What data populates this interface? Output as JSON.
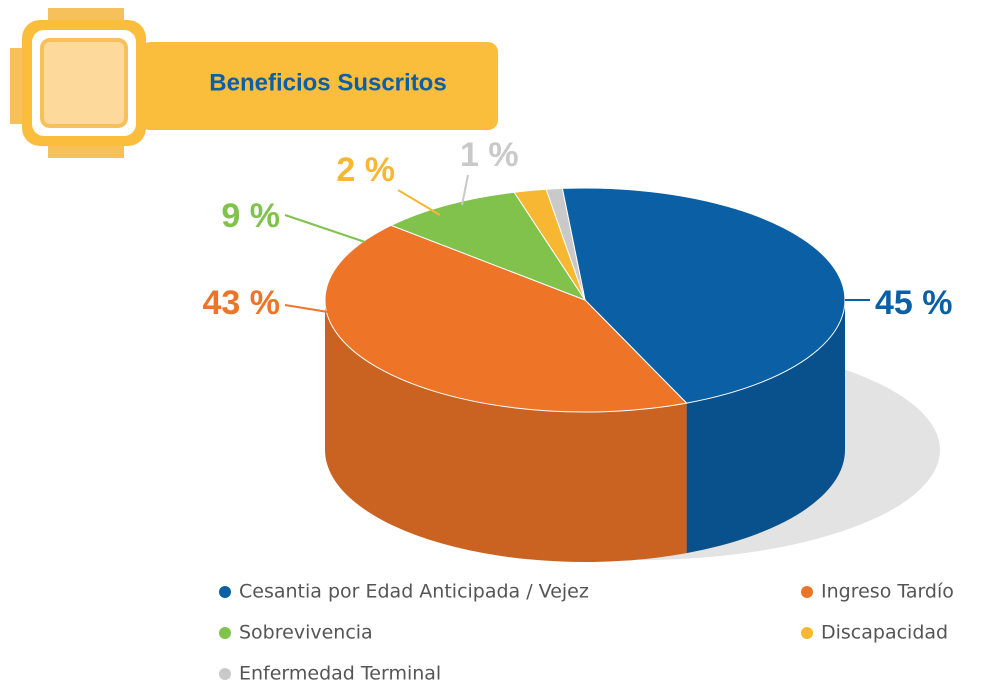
{
  "chart_data": {
    "type": "pie",
    "title": "Beneficios Suscritos",
    "categories": [
      "Cesantia por Edad Anticipada / Vejez",
      "Ingreso Tardío",
      "Sobrevivencia",
      "Discapacidad",
      "Enfermedad Terminal"
    ],
    "values": [
      45,
      43,
      9,
      2,
      1
    ],
    "value_labels": [
      "45 %",
      "43 %",
      "9 %",
      "2 %",
      "1 %"
    ],
    "colors": [
      "#0b5fa5",
      "#ee7427",
      "#80c24c",
      "#f8b733",
      "#c9c9c9"
    ],
    "legend": "bottom"
  }
}
